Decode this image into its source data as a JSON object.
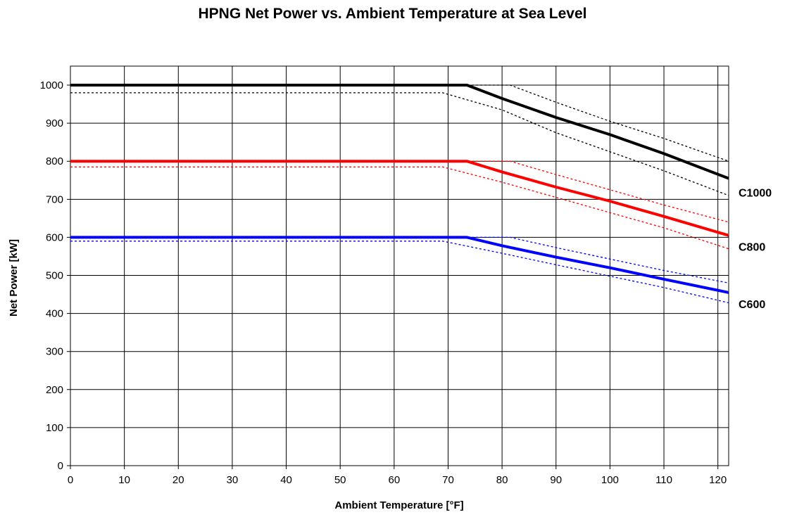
{
  "chart_data": {
    "type": "line",
    "title": "HPNG Net Power vs. Ambient Temperature at Sea Level",
    "xlabel": "Ambient Temperature [°F]",
    "ylabel": "Net Power [kW]",
    "xlim": [
      0,
      122
    ],
    "ylim": [
      0,
      1050
    ],
    "xticks": [
      0,
      10,
      20,
      30,
      40,
      50,
      60,
      70,
      80,
      90,
      100,
      110,
      120
    ],
    "yticks": [
      0,
      100,
      200,
      300,
      400,
      500,
      600,
      700,
      800,
      900,
      1000
    ],
    "grid": true,
    "legend": "none",
    "series": [
      {
        "name": "C1000",
        "color": "#000000",
        "style": "solid",
        "x": [
          0,
          73.5,
          80,
          90,
          100,
          110,
          122
        ],
        "y": [
          1000,
          1000,
          965,
          915,
          870,
          820,
          755
        ]
      },
      {
        "color": "#000000",
        "style": "dotted",
        "x": [
          0,
          81.5,
          90,
          100,
          110,
          122
        ],
        "y": [
          1000,
          1000,
          955,
          905,
          860,
          800
        ]
      },
      {
        "color": "#000000",
        "style": "dotted",
        "x": [
          0,
          69,
          80,
          90,
          100,
          110,
          122
        ],
        "y": [
          980,
          980,
          935,
          875,
          825,
          775,
          710
        ]
      },
      {
        "name": "C800",
        "color": "#ff0000",
        "style": "solid",
        "x": [
          0,
          73.5,
          80,
          90,
          100,
          110,
          122
        ],
        "y": [
          800,
          800,
          772,
          732,
          695,
          655,
          605
        ]
      },
      {
        "color": "#ff0000",
        "style": "dotted",
        "x": [
          0,
          81.5,
          90,
          100,
          110,
          122
        ],
        "y": [
          800,
          800,
          765,
          725,
          685,
          640
        ]
      },
      {
        "color": "#ff0000",
        "style": "dotted",
        "x": [
          0,
          69,
          80,
          90,
          100,
          110,
          122
        ],
        "y": [
          785,
          785,
          745,
          705,
          665,
          625,
          570
        ]
      },
      {
        "name": "C600",
        "color": "#0000ff",
        "style": "solid",
        "x": [
          0,
          73.5,
          80,
          90,
          100,
          110,
          122
        ],
        "y": [
          600,
          600,
          578,
          548,
          520,
          490,
          455
        ]
      },
      {
        "color": "#0000ff",
        "style": "dotted",
        "x": [
          0,
          81.5,
          90,
          100,
          110,
          122
        ],
        "y": [
          600,
          600,
          573,
          543,
          513,
          480
        ]
      },
      {
        "color": "#0000ff",
        "style": "dotted",
        "x": [
          0,
          69,
          80,
          90,
          100,
          110,
          122
        ],
        "y": [
          590,
          590,
          558,
          528,
          498,
          468,
          428
        ]
      }
    ]
  }
}
